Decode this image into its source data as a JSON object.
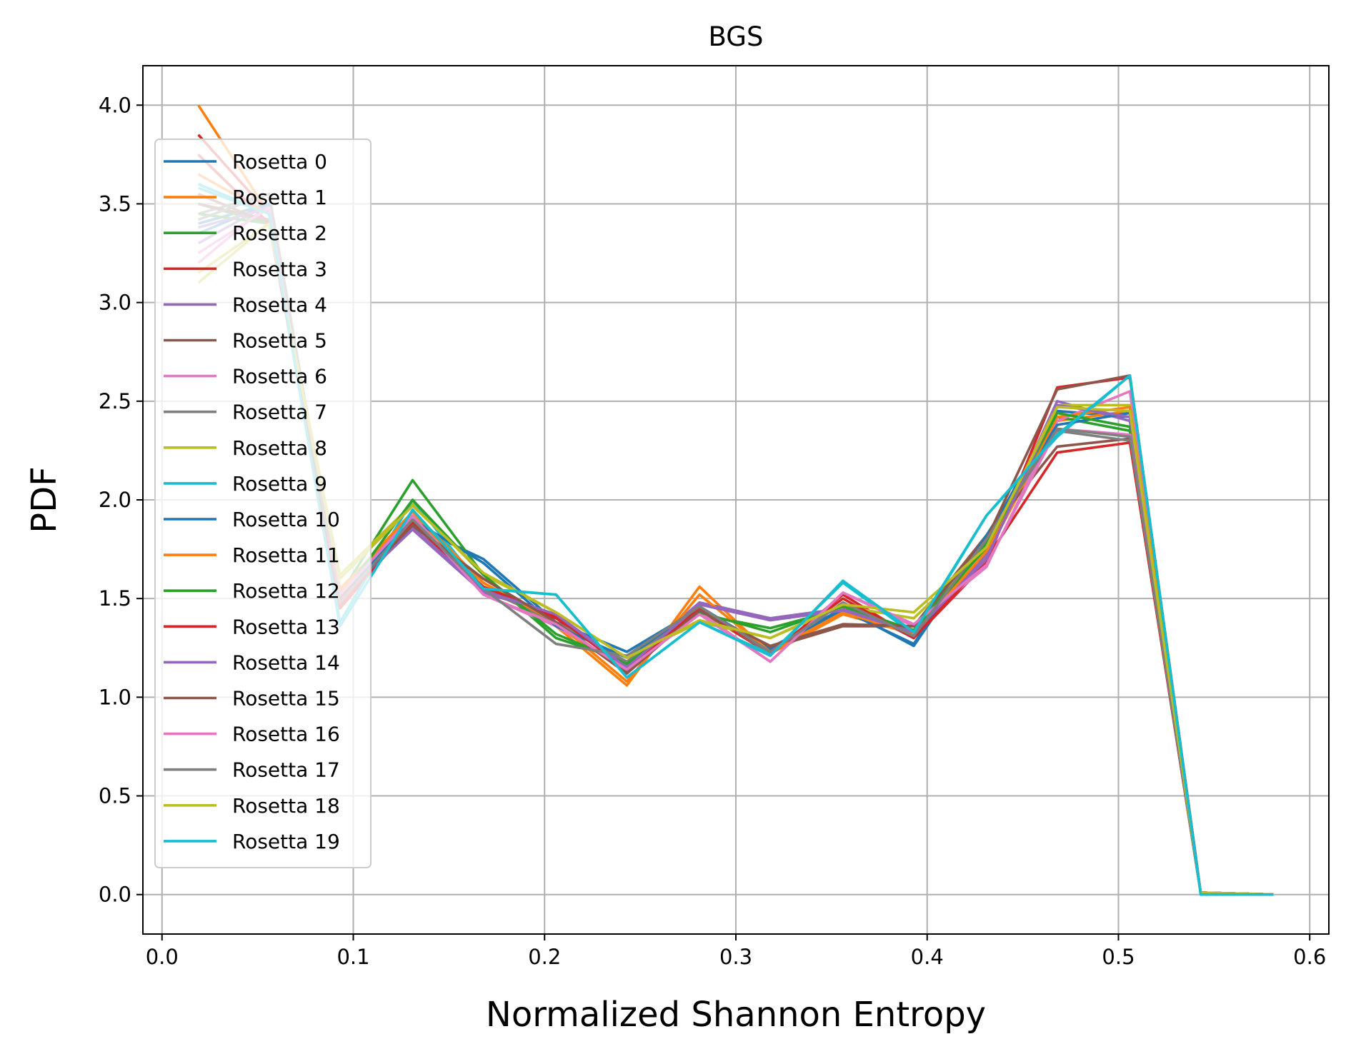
{
  "chart_data": {
    "type": "line",
    "title": "BGS",
    "xlabel": "Normalized Shannon Entropy",
    "ylabel": "PDF",
    "xlim": [
      -0.01,
      0.61
    ],
    "ylim": [
      -0.2,
      4.2
    ],
    "xticks": [
      0.0,
      0.1,
      0.2,
      0.3,
      0.4,
      0.5,
      0.6
    ],
    "xtick_labels": [
      "0.0",
      "0.1",
      "0.2",
      "0.3",
      "0.4",
      "0.5",
      "0.6"
    ],
    "yticks": [
      0.0,
      0.5,
      1.0,
      1.5,
      2.0,
      2.5,
      3.0,
      3.5,
      4.0
    ],
    "ytick_labels": [
      "0.0",
      "0.5",
      "1.0",
      "1.5",
      "2.0",
      "2.5",
      "3.0",
      "3.5",
      "4.0"
    ],
    "grid": true,
    "legend_position": "upper-left",
    "x": [
      0.019,
      0.056,
      0.093,
      0.131,
      0.168,
      0.206,
      0.243,
      0.281,
      0.318,
      0.356,
      0.393,
      0.431,
      0.468,
      0.506,
      0.543,
      0.581
    ],
    "series": [
      {
        "name": "Rosetta 0",
        "color": "#1f77b4",
        "values": [
          3.4,
          3.5,
          1.5,
          1.87,
          1.7,
          1.38,
          1.23,
          1.45,
          1.25,
          1.45,
          1.26,
          1.8,
          2.45,
          2.42,
          0.01,
          0.0
        ]
      },
      {
        "name": "Rosetta 1",
        "color": "#ff7f0e",
        "values": [
          4.0,
          3.45,
          1.55,
          1.92,
          1.58,
          1.36,
          1.06,
          1.56,
          1.22,
          1.42,
          1.32,
          1.72,
          2.4,
          2.45,
          0.01,
          0.0
        ]
      },
      {
        "name": "Rosetta 2",
        "color": "#2ca02c",
        "values": [
          3.5,
          3.4,
          1.52,
          2.1,
          1.62,
          1.3,
          1.18,
          1.42,
          1.35,
          1.45,
          1.34,
          1.78,
          2.42,
          2.35,
          0.01,
          0.0
        ]
      },
      {
        "name": "Rosetta 3",
        "color": "#d62728",
        "values": [
          3.85,
          3.45,
          1.45,
          1.88,
          1.55,
          1.4,
          1.15,
          1.44,
          1.22,
          1.52,
          1.3,
          1.68,
          2.57,
          2.62,
          0.01,
          0.0
        ]
      },
      {
        "name": "Rosetta 4",
        "color": "#9467bd",
        "values": [
          3.3,
          3.5,
          1.5,
          1.85,
          1.53,
          1.42,
          1.16,
          1.48,
          1.4,
          1.45,
          1.33,
          1.72,
          2.5,
          2.4,
          0.01,
          0.0
        ]
      },
      {
        "name": "Rosetta 5",
        "color": "#8c564b",
        "values": [
          3.55,
          3.4,
          1.5,
          1.88,
          1.6,
          1.38,
          1.13,
          1.43,
          1.25,
          1.36,
          1.36,
          1.82,
          2.27,
          2.31,
          0.01,
          0.0
        ]
      },
      {
        "name": "Rosetta 6",
        "color": "#e377c2",
        "values": [
          3.2,
          3.5,
          1.52,
          1.92,
          1.52,
          1.36,
          1.14,
          1.43,
          1.18,
          1.53,
          1.36,
          1.66,
          2.4,
          2.55,
          0.01,
          0.0
        ]
      },
      {
        "name": "Rosetta 7",
        "color": "#7f7f7f",
        "values": [
          3.45,
          3.55,
          1.48,
          1.9,
          1.55,
          1.38,
          1.18,
          1.46,
          1.22,
          1.48,
          1.3,
          1.8,
          2.35,
          2.3,
          0.01,
          0.0
        ]
      },
      {
        "name": "Rosetta 8",
        "color": "#bcbd22",
        "values": [
          3.1,
          3.4,
          1.62,
          1.98,
          1.62,
          1.43,
          1.2,
          1.38,
          1.3,
          1.46,
          1.4,
          1.75,
          2.48,
          2.48,
          0.01,
          0.0
        ]
      },
      {
        "name": "Rosetta 9",
        "color": "#17becf",
        "values": [
          3.6,
          3.45,
          1.38,
          2.0,
          1.55,
          1.52,
          1.1,
          1.38,
          1.22,
          1.58,
          1.32,
          1.92,
          2.32,
          2.63,
          0.01,
          0.0
        ]
      },
      {
        "name": "Rosetta 10",
        "color": "#1f77b4",
        "values": [
          3.35,
          3.5,
          1.5,
          1.9,
          1.68,
          1.36,
          1.2,
          1.46,
          1.24,
          1.44,
          1.27,
          1.82,
          2.38,
          2.44,
          0.01,
          0.0
        ]
      },
      {
        "name": "Rosetta 11",
        "color": "#ff7f0e",
        "values": [
          3.65,
          3.45,
          1.54,
          1.94,
          1.58,
          1.38,
          1.08,
          1.52,
          1.23,
          1.43,
          1.32,
          1.74,
          2.42,
          2.47,
          0.01,
          0.0
        ]
      },
      {
        "name": "Rosetta 12",
        "color": "#2ca02c",
        "values": [
          3.45,
          3.4,
          1.5,
          2.0,
          1.62,
          1.32,
          1.17,
          1.43,
          1.33,
          1.46,
          1.34,
          1.76,
          2.44,
          2.37,
          0.01,
          0.0
        ]
      },
      {
        "name": "Rosetta 13",
        "color": "#d62728",
        "values": [
          3.75,
          3.4,
          1.46,
          1.89,
          1.56,
          1.41,
          1.14,
          1.45,
          1.23,
          1.5,
          1.3,
          1.7,
          2.24,
          2.29,
          0.01,
          0.0
        ]
      },
      {
        "name": "Rosetta 14",
        "color": "#9467bd",
        "values": [
          3.38,
          3.48,
          1.5,
          1.86,
          1.54,
          1.42,
          1.15,
          1.47,
          1.39,
          1.44,
          1.33,
          1.7,
          2.48,
          2.42,
          0.01,
          0.0
        ]
      },
      {
        "name": "Rosetta 15",
        "color": "#8c564b",
        "values": [
          3.5,
          3.42,
          1.5,
          1.87,
          1.6,
          1.38,
          1.12,
          1.44,
          1.26,
          1.37,
          1.36,
          1.8,
          2.56,
          2.63,
          0.01,
          0.0
        ]
      },
      {
        "name": "Rosetta 16",
        "color": "#e377c2",
        "values": [
          3.25,
          3.48,
          1.52,
          1.92,
          1.52,
          1.37,
          1.14,
          1.42,
          1.18,
          1.53,
          1.37,
          1.67,
          2.36,
          2.33,
          0.01,
          0.0
        ]
      },
      {
        "name": "Rosetta 17",
        "color": "#7f7f7f",
        "values": [
          3.42,
          3.55,
          1.48,
          1.9,
          1.55,
          1.27,
          1.21,
          1.46,
          1.23,
          1.48,
          1.31,
          1.8,
          2.36,
          2.32,
          0.01,
          0.0
        ]
      },
      {
        "name": "Rosetta 18",
        "color": "#bcbd22",
        "values": [
          3.15,
          3.4,
          1.6,
          1.97,
          1.63,
          1.43,
          1.2,
          1.39,
          1.3,
          1.47,
          1.43,
          1.76,
          2.47,
          2.45,
          0.01,
          0.0
        ]
      },
      {
        "name": "Rosetta 19",
        "color": "#17becf",
        "values": [
          3.58,
          3.45,
          1.36,
          1.95,
          1.55,
          1.52,
          1.1,
          1.38,
          1.21,
          1.59,
          1.33,
          1.92,
          2.33,
          2.63,
          0.0,
          0.0
        ]
      }
    ]
  }
}
